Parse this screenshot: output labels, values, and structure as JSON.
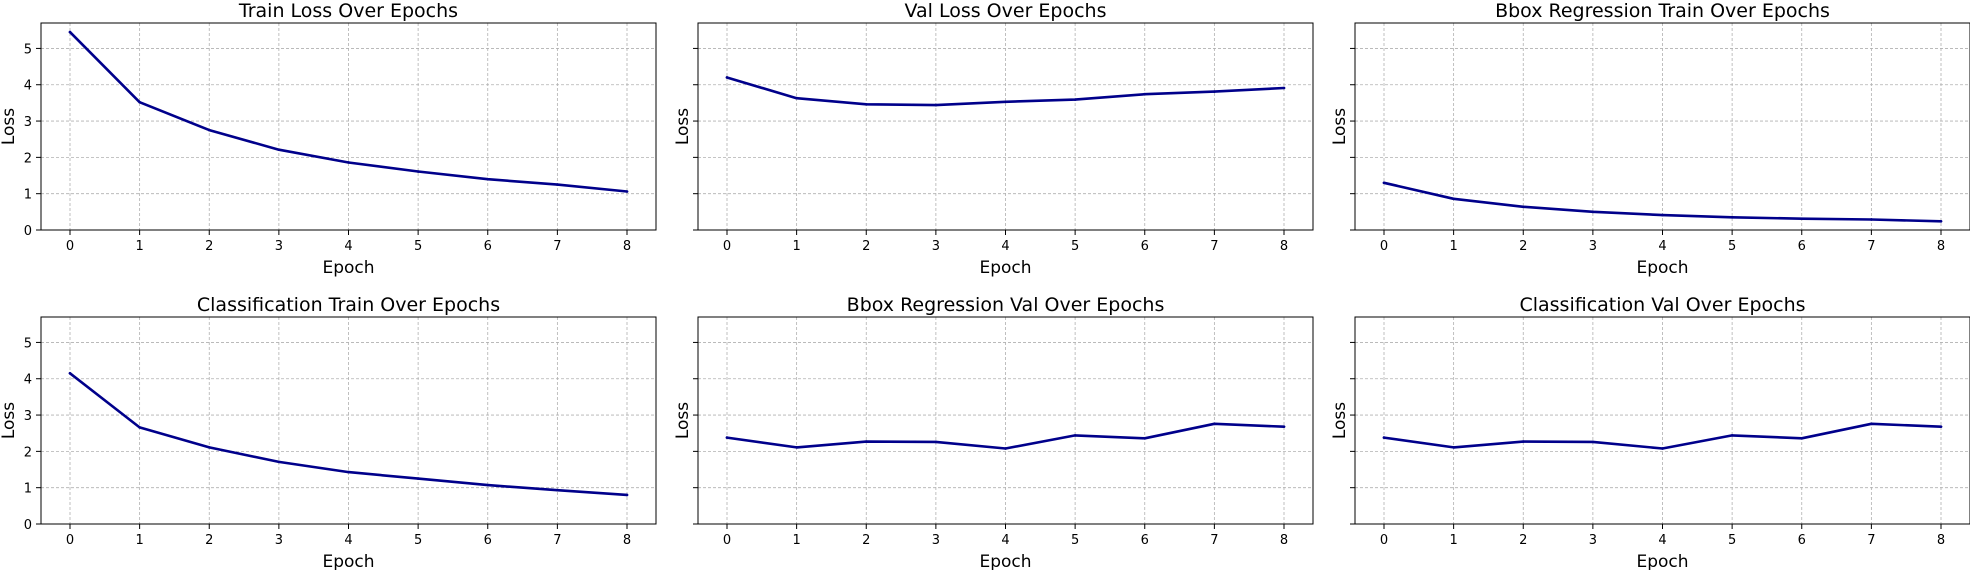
{
  "chart_data": [
    {
      "type": "line",
      "title": "Train Loss Over Epochs",
      "xlabel": "Epoch",
      "ylabel": "Loss",
      "x": [
        0,
        1,
        2,
        3,
        4,
        5,
        6,
        7,
        8
      ],
      "series": [
        {
          "values": [
            5.45,
            3.52,
            2.75,
            2.21,
            1.86,
            1.61,
            1.4,
            1.25,
            1.06
          ]
        }
      ],
      "xticks": [
        "0",
        "1",
        "2",
        "3",
        "4",
        "5",
        "6",
        "7",
        "8"
      ],
      "yticks": [
        "0",
        "1",
        "2",
        "3",
        "4",
        "5"
      ],
      "ylim": [
        0,
        5.7
      ],
      "show_ytick_labels": true,
      "grid": true,
      "line_color": "#00008b"
    },
    {
      "type": "line",
      "title": "Val Loss Over Epochs",
      "xlabel": "Epoch",
      "ylabel": "Loss",
      "x": [
        0,
        1,
        2,
        3,
        4,
        5,
        6,
        7,
        8
      ],
      "series": [
        {
          "values": [
            4.2,
            3.63,
            3.46,
            3.44,
            3.53,
            3.59,
            3.74,
            3.81,
            3.91
          ]
        }
      ],
      "xticks": [
        "0",
        "1",
        "2",
        "3",
        "4",
        "5",
        "6",
        "7",
        "8"
      ],
      "yticks": [
        "0",
        "1",
        "2",
        "3",
        "4",
        "5"
      ],
      "ylim": [
        0,
        5.7
      ],
      "show_ytick_labels": false,
      "grid": true,
      "line_color": "#00008b"
    },
    {
      "type": "line",
      "title": "Bbox Regression Train Over Epochs",
      "xlabel": "Epoch",
      "ylabel": "Loss",
      "x": [
        0,
        1,
        2,
        3,
        4,
        5,
        6,
        7,
        8
      ],
      "series": [
        {
          "values": [
            1.3,
            0.86,
            0.64,
            0.5,
            0.41,
            0.35,
            0.31,
            0.29,
            0.24
          ]
        }
      ],
      "xticks": [
        "0",
        "1",
        "2",
        "3",
        "4",
        "5",
        "6",
        "7",
        "8"
      ],
      "yticks": [
        "0",
        "1",
        "2",
        "3",
        "4",
        "5"
      ],
      "ylim": [
        0,
        5.7
      ],
      "show_ytick_labels": false,
      "grid": true,
      "line_color": "#00008b"
    },
    {
      "type": "line",
      "title": "Classification Train Over Epochs",
      "xlabel": "Epoch",
      "ylabel": "Loss",
      "x": [
        0,
        1,
        2,
        3,
        4,
        5,
        6,
        7,
        8
      ],
      "series": [
        {
          "values": [
            4.15,
            2.66,
            2.11,
            1.71,
            1.43,
            1.25,
            1.07,
            0.93,
            0.8
          ]
        }
      ],
      "xticks": [
        "0",
        "1",
        "2",
        "3",
        "4",
        "5",
        "6",
        "7",
        "8"
      ],
      "yticks": [
        "0",
        "1",
        "2",
        "3",
        "4",
        "5"
      ],
      "ylim": [
        0,
        5.7
      ],
      "show_ytick_labels": true,
      "grid": true,
      "line_color": "#00008b"
    },
    {
      "type": "line",
      "title": "Bbox Regression Val Over Epochs",
      "xlabel": "Epoch",
      "ylabel": "Loss",
      "x": [
        0,
        1,
        2,
        3,
        4,
        5,
        6,
        7,
        8
      ],
      "series": [
        {
          "values": [
            2.38,
            2.11,
            2.27,
            2.26,
            2.08,
            2.44,
            2.36,
            2.76,
            2.68
          ]
        }
      ],
      "xticks": [
        "0",
        "1",
        "2",
        "3",
        "4",
        "5",
        "6",
        "7",
        "8"
      ],
      "yticks": [
        "0",
        "1",
        "2",
        "3",
        "4",
        "5"
      ],
      "ylim": [
        0,
        5.7
      ],
      "show_ytick_labels": false,
      "grid": true,
      "line_color": "#00008b"
    },
    {
      "type": "line",
      "title": "Classification Val Over Epochs",
      "xlabel": "Epoch",
      "ylabel": "Loss",
      "x": [
        0,
        1,
        2,
        3,
        4,
        5,
        6,
        7,
        8
      ],
      "series": [
        {
          "values": [
            2.38,
            2.11,
            2.27,
            2.26,
            2.08,
            2.44,
            2.36,
            2.76,
            2.68
          ]
        }
      ],
      "xticks": [
        "0",
        "1",
        "2",
        "3",
        "4",
        "5",
        "6",
        "7",
        "8"
      ],
      "yticks": [
        "0",
        "1",
        "2",
        "3",
        "4",
        "5"
      ],
      "ylim": [
        0,
        5.7
      ],
      "show_ytick_labels": false,
      "grid": true,
      "line_color": "#00008b"
    }
  ]
}
